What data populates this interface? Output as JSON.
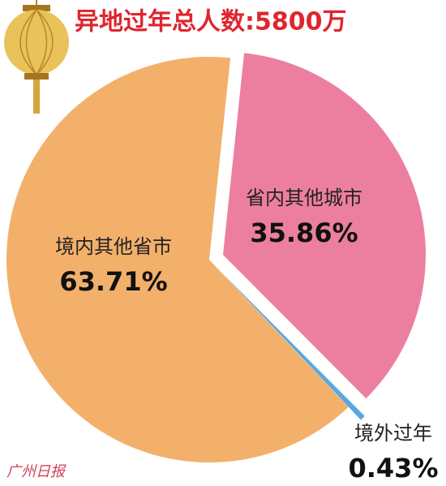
{
  "chart_data": {
    "type": "pie",
    "title": "异地过年总人数:5800万",
    "categories": [
      "省内其他城市",
      "境外过年",
      "境内其他省市"
    ],
    "values": [
      35.86,
      0.43,
      63.71
    ],
    "value_labels": [
      "35.86%",
      "0.43%",
      "63.71%"
    ],
    "colors": [
      "#ec7f9f",
      "#5aa7de",
      "#f3b06b"
    ]
  },
  "watermark": "广州日报"
}
